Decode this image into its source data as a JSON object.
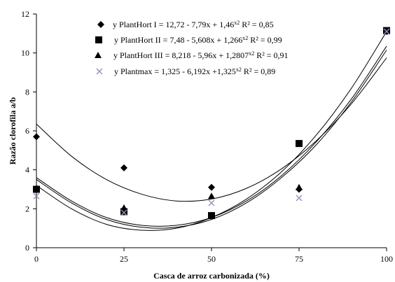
{
  "chart_data": {
    "type": "scatter",
    "xlabel": "Casca de arroz carbonizada (%)",
    "ylabel": "Razão clorofila a/b",
    "xlim": [
      0,
      100
    ],
    "ylim": [
      0,
      12
    ],
    "x_ticks": [
      "0",
      "25",
      "50",
      "75",
      "100"
    ],
    "y_ticks": [
      "0",
      "2",
      "4",
      "6",
      "8",
      "10",
      "12"
    ],
    "x": [
      0,
      25,
      50,
      75,
      100
    ],
    "grid": false,
    "legend_position": "top-left",
    "series": [
      {
        "name": "PlantHort I",
        "marker": "diamond",
        "color": "#000000",
        "values": [
          5.7,
          4.1,
          3.1,
          3.0,
          11.1
        ],
        "legend_parts": [
          "y PlantHort I = ",
          "12,72 - 7,79x + 1,46",
          "x2",
          "  R² = 0,85"
        ]
      },
      {
        "name": "PlantHort II",
        "marker": "square",
        "color": "#000000",
        "values": [
          3.0,
          1.85,
          1.65,
          5.35,
          11.15
        ],
        "legend_parts": [
          "y PlantHort II = ",
          "7,48 - 5,608x + 1,266",
          "x2",
          "  R² = 0,99"
        ]
      },
      {
        "name": "PlantHort III",
        "marker": "triangle",
        "color": "#000000",
        "values": [
          3.0,
          2.05,
          2.65,
          3.1,
          11.1
        ],
        "legend_parts": [
          "y PlantHort III = ",
          "8,218 - 5,96x + 1,2807",
          "x2",
          "  R² = 0,91"
        ]
      },
      {
        "name": "Plantmax",
        "marker": "x",
        "color": "#9b8fc4",
        "values": [
          2.65,
          1.8,
          2.3,
          2.55,
          11.1
        ],
        "legend_parts": [
          "y  Plantmax = ",
          "1,325 - 6,192x +1,325",
          "x2",
          "  R² = 0,89"
        ]
      }
    ],
    "trendlines": [
      {
        "equation": "12,72 - 7,79x + 1,46x2",
        "points": [
          [
            0,
            6.35
          ],
          [
            10,
            4.7
          ],
          [
            20,
            3.5
          ],
          [
            30,
            2.75
          ],
          [
            40,
            2.4
          ],
          [
            50,
            2.5
          ],
          [
            60,
            3.05
          ],
          [
            70,
            4.05
          ],
          [
            80,
            5.5
          ],
          [
            90,
            7.4
          ],
          [
            100,
            9.75
          ]
        ]
      },
      {
        "equation": "7,48 - 5,608x + 1,266x2",
        "points": [
          [
            0,
            3.5
          ],
          [
            10,
            2.3
          ],
          [
            20,
            1.45
          ],
          [
            30,
            1.05
          ],
          [
            40,
            1.05
          ],
          [
            50,
            1.45
          ],
          [
            60,
            2.3
          ],
          [
            70,
            3.6
          ],
          [
            80,
            5.3
          ],
          [
            90,
            7.5
          ],
          [
            100,
            10.15
          ]
        ]
      },
      {
        "equation": "8,218 - 5,96x + 1,2807x2",
        "points": [
          [
            0,
            3.6
          ],
          [
            10,
            2.4
          ],
          [
            20,
            1.55
          ],
          [
            30,
            1.15
          ],
          [
            40,
            1.15
          ],
          [
            50,
            1.55
          ],
          [
            60,
            2.4
          ],
          [
            70,
            3.7
          ],
          [
            80,
            5.45
          ],
          [
            90,
            7.65
          ],
          [
            100,
            10.35
          ]
        ]
      },
      {
        "equation": "1,325 - 6,192x +1,325x2",
        "points": [
          [
            0,
            3.2
          ],
          [
            10,
            2.0
          ],
          [
            20,
            1.2
          ],
          [
            30,
            0.9
          ],
          [
            40,
            1.0
          ],
          [
            50,
            1.55
          ],
          [
            60,
            2.5
          ],
          [
            70,
            3.9
          ],
          [
            80,
            5.8
          ],
          [
            90,
            8.2
          ],
          [
            100,
            11.1
          ]
        ]
      }
    ]
  }
}
